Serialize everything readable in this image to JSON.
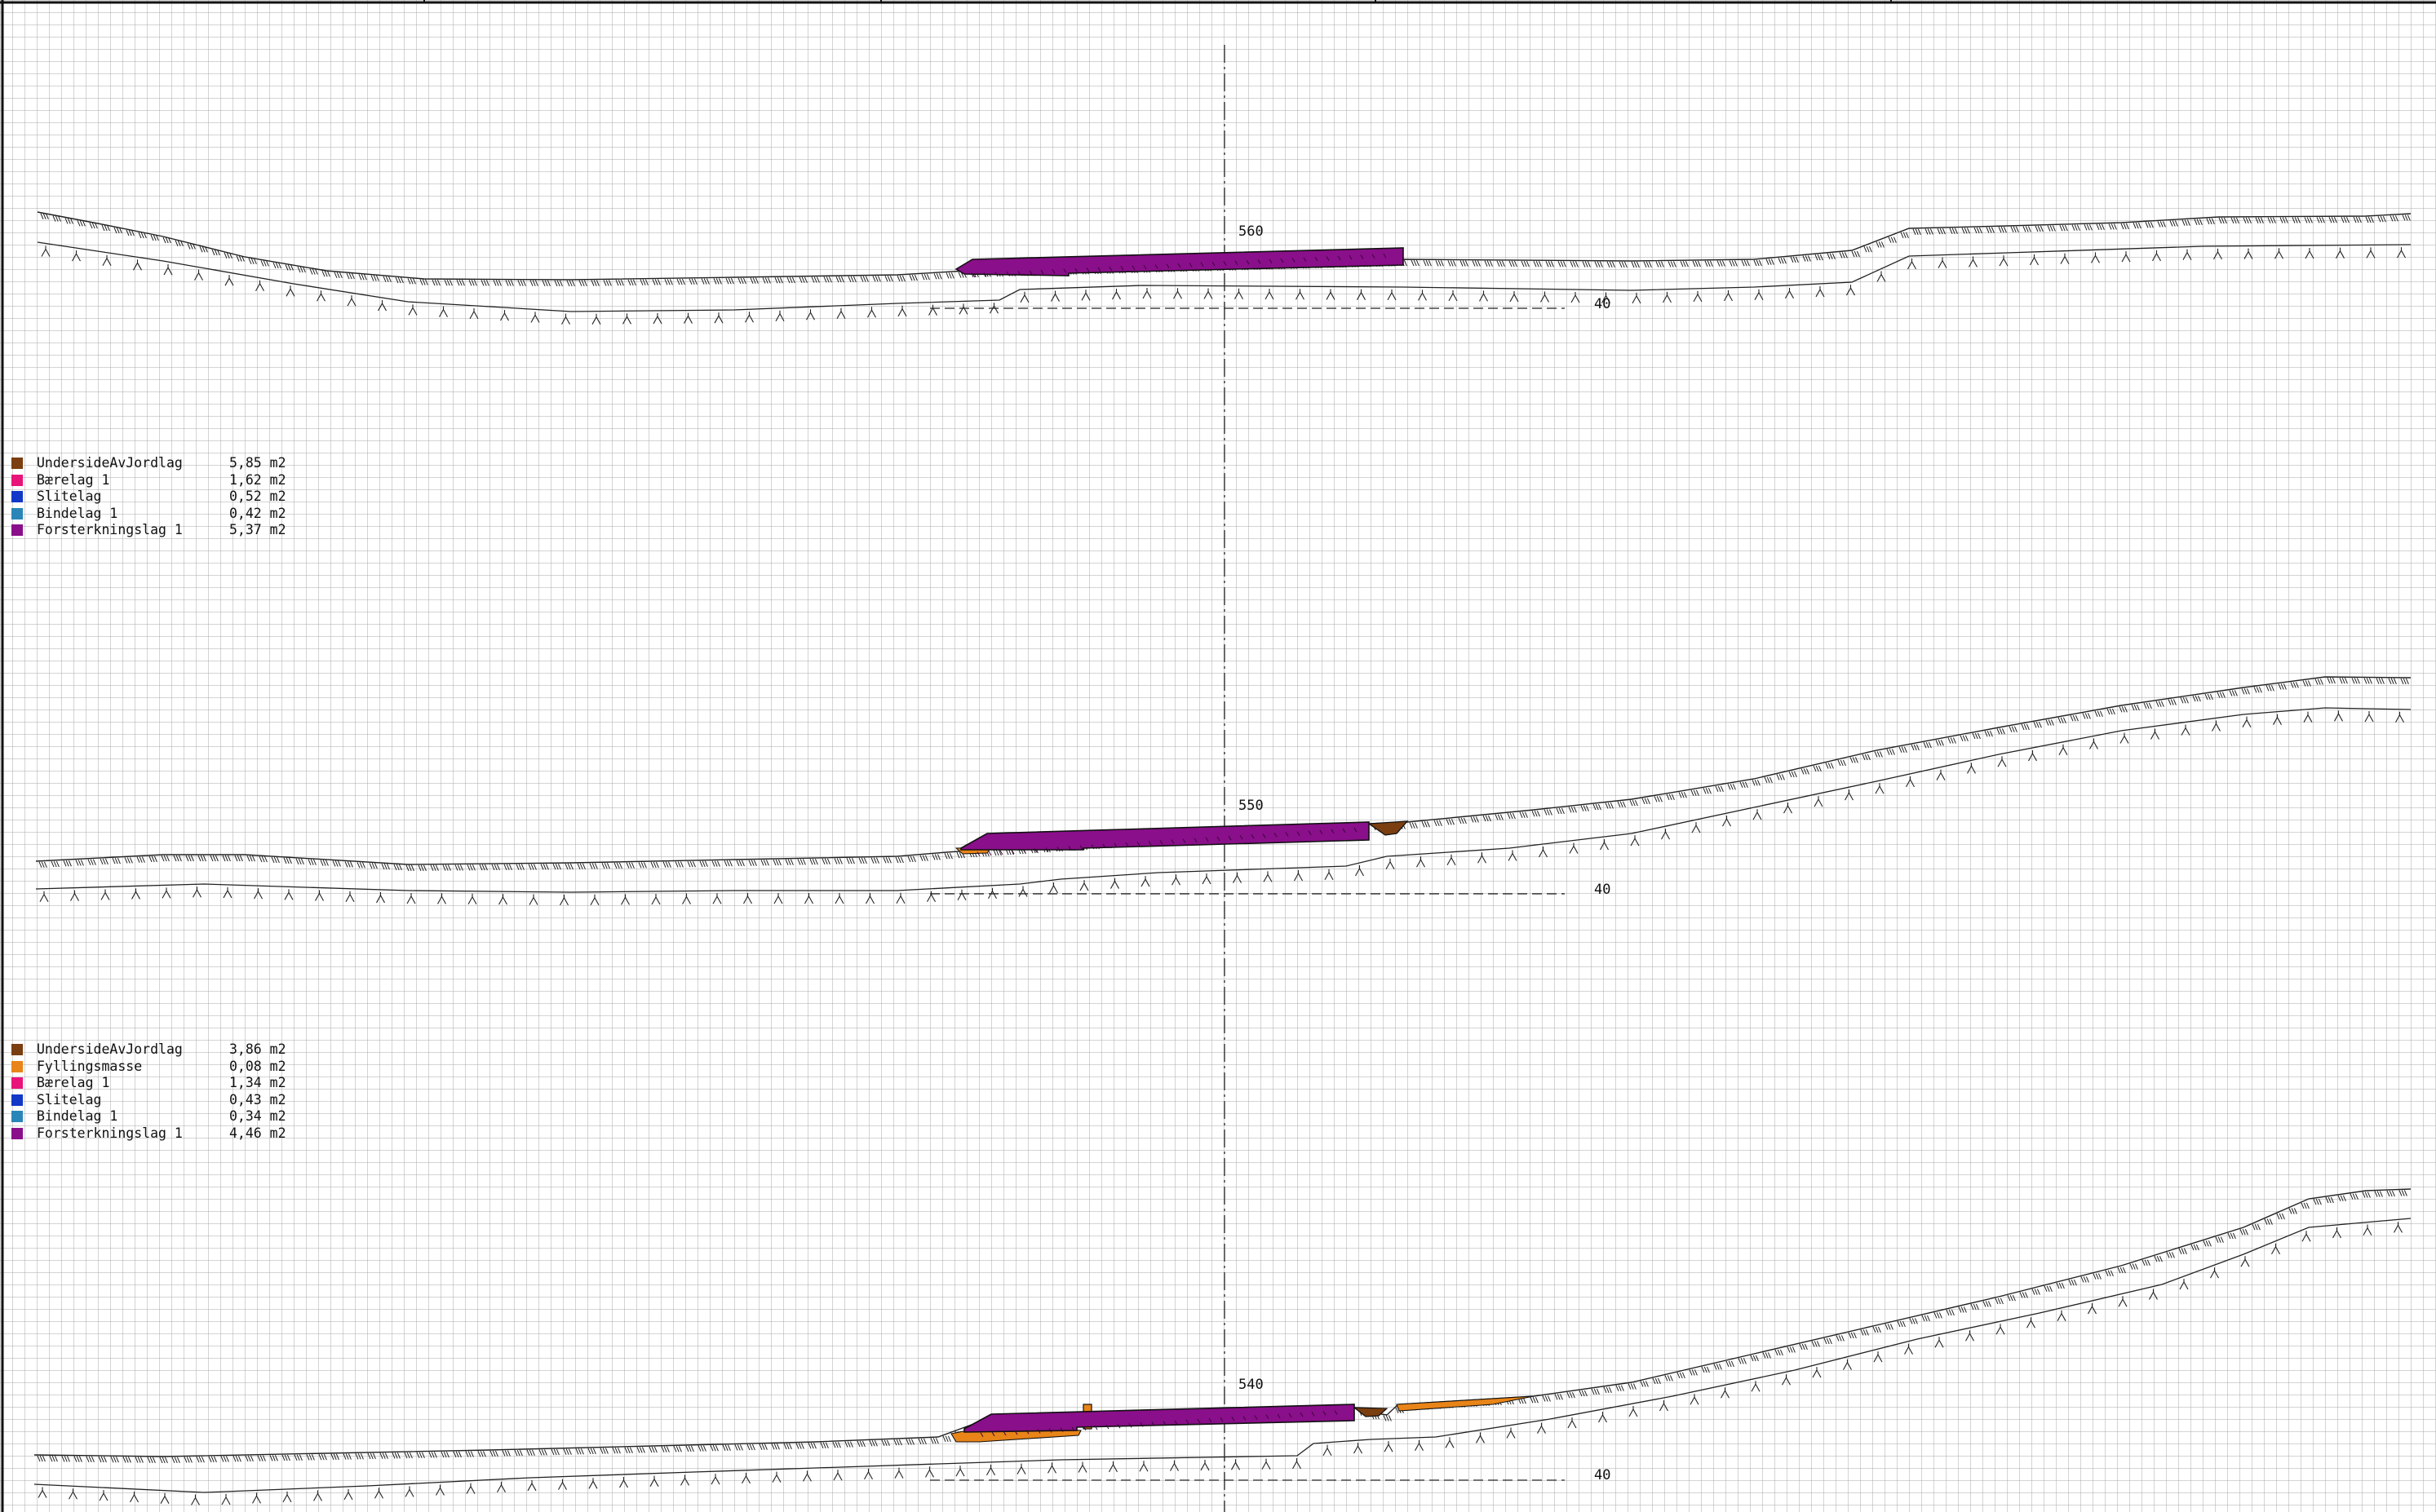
{
  "sections": [
    {
      "station": "560",
      "elevation": "40",
      "legend": [
        {
          "name": "UndersideAvJordlag",
          "value": "5,85 m2",
          "color": "#7a3e10"
        },
        {
          "name": "Bærelag 1",
          "value": "1,62 m2",
          "color": "#e8147a"
        },
        {
          "name": "Slitelag",
          "value": "0,52 m2",
          "color": "#1238c8"
        },
        {
          "name": "Bindelag 1",
          "value": "0,42 m2",
          "color": "#2a86b8"
        },
        {
          "name": "Forsterkningslag 1",
          "value": "5,37 m2",
          "color": "#8a0f8a"
        }
      ]
    },
    {
      "station": "550",
      "elevation": "40",
      "legend": [
        {
          "name": "UndersideAvJordlag",
          "value": "3,86 m2",
          "color": "#7a3e10"
        },
        {
          "name": "Fyllingsmasse",
          "value": "0,08 m2",
          "color": "#e88418"
        },
        {
          "name": "Bærelag 1",
          "value": "1,34 m2",
          "color": "#e8147a"
        },
        {
          "name": "Slitelag",
          "value": "0,43 m2",
          "color": "#1238c8"
        },
        {
          "name": "Bindelag 1",
          "value": "0,34 m2",
          "color": "#2a86b8"
        },
        {
          "name": "Forsterkningslag 1",
          "value": "4,46 m2",
          "color": "#8a0f8a"
        }
      ]
    },
    {
      "station": "540",
      "elevation": "40"
    }
  ],
  "colors": {
    "grid": "#a8a8a8",
    "line": "#222222",
    "pavement": "#8a0f8a",
    "topsoil": "#7a3e10",
    "fill": "#e88418"
  }
}
